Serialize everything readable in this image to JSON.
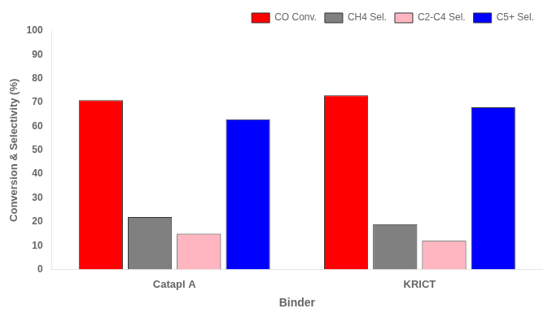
{
  "chart_data": {
    "type": "bar",
    "categories": [
      "Catapl A",
      "KRICT"
    ],
    "series": [
      {
        "name": "CO Conv.",
        "color": "#ff0000",
        "values": [
          71,
          73
        ]
      },
      {
        "name": "CH4 Sel.",
        "color": "#808080",
        "values": [
          22,
          19
        ]
      },
      {
        "name": "C2-C4 Sel.",
        "color": "#ffb6c1",
        "values": [
          15,
          12
        ]
      },
      {
        "name": "C5+ Sel.",
        "color": "#0000ff",
        "values": [
          63,
          68
        ]
      }
    ],
    "xlabel": "Binder",
    "ylabel": "Conversion & Selectivity (%)",
    "ylim": [
      0,
      100
    ],
    "yticks": [
      0,
      10,
      20,
      30,
      40,
      50,
      60,
      70,
      80,
      90,
      100
    ],
    "grid": false,
    "legend": "upper right"
  }
}
